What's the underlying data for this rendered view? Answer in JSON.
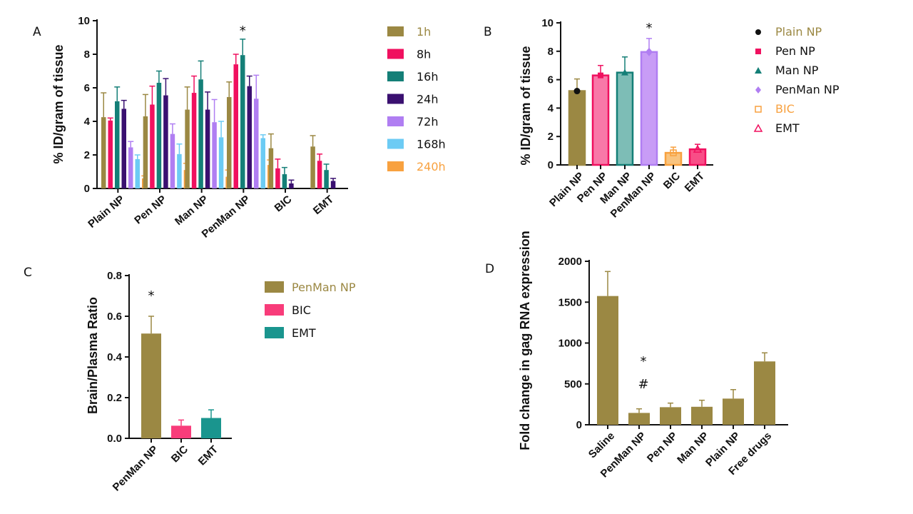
{
  "panels": {
    "A": "A",
    "B": "B",
    "C": "C",
    "D": "D"
  },
  "colors": {
    "gold": "#9b8843",
    "pink": "#f0105f",
    "teal": "#147f77",
    "indigo": "#3a1070",
    "lavender": "#b07ef2",
    "sky": "#6ccbf4",
    "orange": "#f8a13f",
    "penFill": "#f878a8",
    "manFill": "#7dbdb6",
    "penmanFill": "#c89cf6",
    "bicFill": "#f9c47f",
    "emtFill": "#f84e87",
    "cPink": "#f83c7a",
    "cTeal": "#1a958e"
  },
  "chart_data": [
    {
      "panel": "A",
      "type": "bar",
      "ylabel": "% ID/gram of tissue",
      "ylim": [
        0,
        10
      ],
      "yticks": [
        "0",
        "2",
        "4",
        "6",
        "8",
        "10"
      ],
      "categories": [
        "Plain NP",
        "Pen NP",
        "Man NP",
        "PenMan NP",
        "BIC",
        "EMT"
      ],
      "series": [
        {
          "name": "1h",
          "color": "#9b8843",
          "values": [
            4.25,
            4.3,
            4.7,
            5.45,
            2.4,
            2.5
          ],
          "errors": [
            1.45,
            1.3,
            1.35,
            0.9,
            0.85,
            0.65
          ]
        },
        {
          "name": "8h",
          "color": "#f0105f",
          "values": [
            4.05,
            5.0,
            5.7,
            7.4,
            1.2,
            1.65
          ],
          "errors": [
            0.15,
            1.1,
            1.0,
            0.6,
            0.55,
            0.4
          ]
        },
        {
          "name": "16h",
          "color": "#147f77",
          "values": [
            5.2,
            6.3,
            6.5,
            7.95,
            0.85,
            1.1
          ],
          "errors": [
            0.85,
            0.7,
            1.1,
            0.95,
            0.4,
            0.35
          ]
        },
        {
          "name": "24h",
          "color": "#3a1070",
          "values": [
            4.75,
            5.55,
            4.7,
            6.1,
            0.3,
            0.45
          ],
          "errors": [
            0.5,
            1.0,
            1.05,
            0.6,
            0.2,
            0.15
          ]
        },
        {
          "name": "72h",
          "color": "#b07ef2",
          "values": [
            2.45,
            3.25,
            3.95,
            5.35,
            0,
            0
          ],
          "errors": [
            0.35,
            0.6,
            1.35,
            1.4,
            0,
            0
          ]
        },
        {
          "name": "168h",
          "color": "#6ccbf4",
          "values": [
            1.75,
            2.05,
            3.05,
            3.0,
            0,
            0
          ],
          "errors": [
            0.25,
            0.6,
            0.95,
            0.2,
            0,
            0
          ]
        },
        {
          "name": "240h",
          "color": "#f8a13f",
          "values": [
            0.6,
            1.1,
            0.7,
            1.4,
            0,
            0
          ],
          "errors": [
            0.15,
            0.4,
            0.4,
            0.3,
            0,
            0
          ]
        }
      ],
      "annotations": [
        {
          "text": "*",
          "category": "PenMan NP"
        }
      ]
    },
    {
      "panel": "B",
      "type": "bar",
      "ylabel": "% ID/gram of tissue",
      "ylim": [
        0,
        10
      ],
      "yticks": [
        "0",
        "2",
        "4",
        "6",
        "8",
        "10"
      ],
      "categories": [
        "Plain NP",
        "Pen NP",
        "Man NP",
        "PenMan NP",
        "BIC",
        "EMT"
      ],
      "values": [
        5.2,
        6.3,
        6.5,
        7.95,
        0.85,
        1.1
      ],
      "errors": [
        0.85,
        0.7,
        1.1,
        0.95,
        0.4,
        0.35
      ],
      "legend": [
        "Plain NP",
        "Pen NP",
        "Man NP",
        "PenMan NP",
        "BIC",
        "EMT"
      ],
      "annotations": [
        {
          "text": "*",
          "category": "PenMan NP"
        }
      ]
    },
    {
      "panel": "C",
      "type": "bar",
      "ylabel": "Brain/Plasma Ratio",
      "ylim": [
        0,
        0.8
      ],
      "yticks": [
        "0.0",
        "0.2",
        "0.4",
        "0.6",
        "0.8"
      ],
      "categories": [
        "PenMan NP",
        "BIC",
        "EMT"
      ],
      "values": [
        0.515,
        0.062,
        0.1
      ],
      "errors": [
        0.085,
        0.028,
        0.04
      ],
      "legend": [
        "PenMan NP",
        "BIC",
        "EMT"
      ],
      "annotations": [
        {
          "text": "*",
          "category": "PenMan NP"
        }
      ]
    },
    {
      "panel": "D",
      "type": "bar",
      "ylabel": "Fold change in gag RNA expression",
      "ylim": [
        0,
        2000
      ],
      "yticks": [
        "0",
        "500",
        "1000",
        "1500",
        "2000"
      ],
      "categories": [
        "Saline",
        "PenMan NP",
        "Pen NP",
        "Man NP",
        "Plain NP",
        "Free drugs"
      ],
      "values": [
        1575,
        145,
        215,
        220,
        320,
        775
      ],
      "errors": [
        300,
        50,
        50,
        80,
        110,
        105
      ],
      "annotations": [
        {
          "text": "*",
          "category": "PenMan NP"
        },
        {
          "text": "#",
          "category": "PenMan NP"
        }
      ]
    }
  ]
}
